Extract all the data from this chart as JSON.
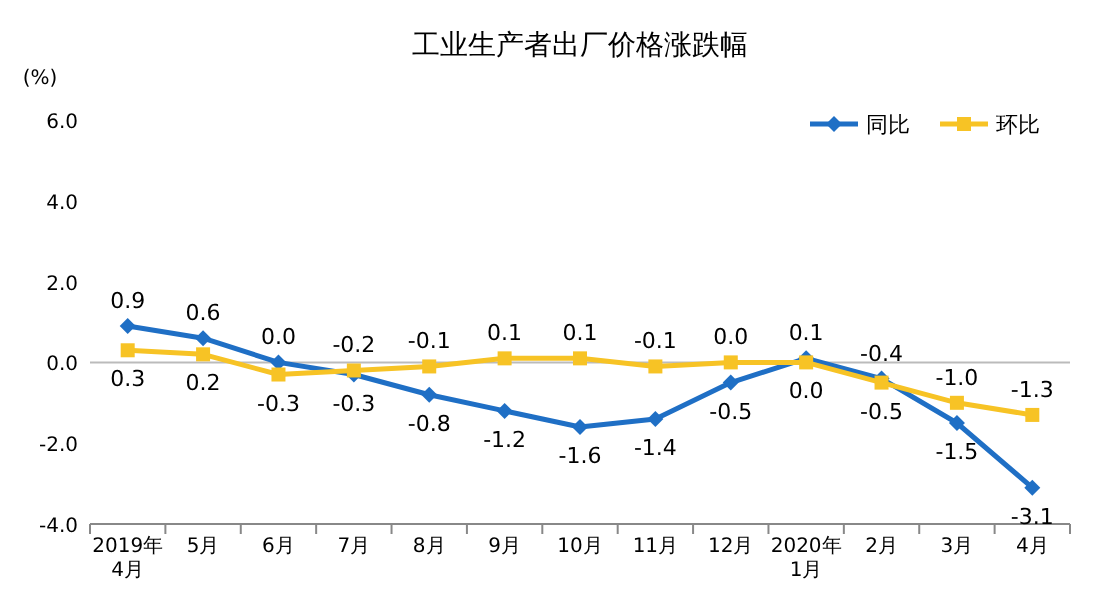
{
  "chart_data": {
    "type": "line",
    "title": "工业生产者出厂价格涨跌幅",
    "ylabel": "(%)",
    "categories": [
      "2019年\n4月",
      "5月",
      "6月",
      "7月",
      "8月",
      "9月",
      "10月",
      "11月",
      "12月",
      "2020年\n1月",
      "2月",
      "3月",
      "4月"
    ],
    "series": [
      {
        "name": "同比",
        "color": "#1f6fc5",
        "marker": "diamond",
        "values": [
          0.9,
          0.6,
          0.0,
          -0.3,
          -0.8,
          -1.2,
          -1.6,
          -1.4,
          -0.5,
          0.1,
          -0.4,
          -1.5,
          -3.1
        ],
        "value_labels": [
          "0.9",
          "0.6",
          "0.0",
          "-0.3",
          "-0.8",
          "-1.2",
          "-1.6",
          "-1.4",
          "-0.5",
          "0.1",
          "-0.4",
          "-1.5",
          "-3.1"
        ]
      },
      {
        "name": "环比",
        "color": "#f7c325",
        "marker": "square",
        "values": [
          0.3,
          0.2,
          -0.3,
          -0.2,
          -0.1,
          0.1,
          0.1,
          -0.1,
          0.0,
          0.0,
          -0.5,
          -1.0,
          -1.3
        ],
        "value_labels": [
          "0.3",
          "0.2",
          "-0.3",
          "-0.2",
          "-0.1",
          "0.1",
          "0.1",
          "-0.1",
          "0.0",
          "0.0",
          "-0.5",
          "-1.0",
          "-1.3"
        ]
      }
    ],
    "ylim": [
      -4,
      6
    ],
    "yticks": [
      {
        "value": -4,
        "label": "-4.0"
      },
      {
        "value": -2,
        "label": "-2.0"
      },
      {
        "value": 0,
        "label": "0.0"
      },
      {
        "value": 2,
        "label": "2.0"
      },
      {
        "value": 4,
        "label": "4.0"
      },
      {
        "value": 6,
        "label": "6.0"
      }
    ],
    "ref_lines": [
      {
        "axis": "y",
        "value": 0,
        "color": "#bbbbbb"
      }
    ],
    "legend": "top right"
  }
}
